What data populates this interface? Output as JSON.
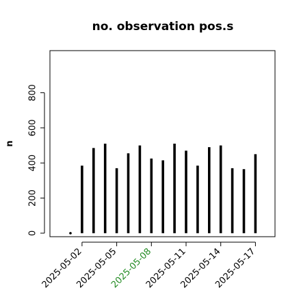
{
  "chart_data": {
    "type": "bar",
    "title": "no. observation pos.s",
    "ylabel": "n",
    "xlabel": "",
    "ylim": [
      -20,
      1040
    ],
    "y_ticks": [
      0,
      200,
      400,
      600,
      800
    ],
    "y_tick_labels": [
      "0",
      "200",
      "400",
      "600",
      "800"
    ],
    "categories": [
      "2025-05-01",
      "2025-05-02",
      "2025-05-03",
      "2025-05-04",
      "2025-05-05",
      "2025-05-06",
      "2025-05-07",
      "2025-05-08",
      "2025-05-09",
      "2025-05-10",
      "2025-05-11",
      "2025-05-12",
      "2025-05-13",
      "2025-05-14",
      "2025-05-15",
      "2025-05-16",
      "2025-05-17"
    ],
    "values": [
      5,
      385,
      485,
      510,
      370,
      455,
      500,
      425,
      415,
      510,
      470,
      385,
      490,
      500,
      370,
      365,
      450
    ],
    "x_tick_labels": [
      {
        "index": 1,
        "label": "2025-05-02",
        "color": "#000000"
      },
      {
        "index": 4,
        "label": "2025-05-05",
        "color": "#000000"
      },
      {
        "index": 7,
        "label": "2025-05-08",
        "color": "#228B22"
      },
      {
        "index": 10,
        "label": "2025-05-11",
        "color": "#000000"
      },
      {
        "index": 13,
        "label": "2025-05-14",
        "color": "#000000"
      },
      {
        "index": 16,
        "label": "2025-05-17",
        "color": "#000000"
      }
    ],
    "bar_color": "#000000",
    "grid": false,
    "legend": "none"
  }
}
